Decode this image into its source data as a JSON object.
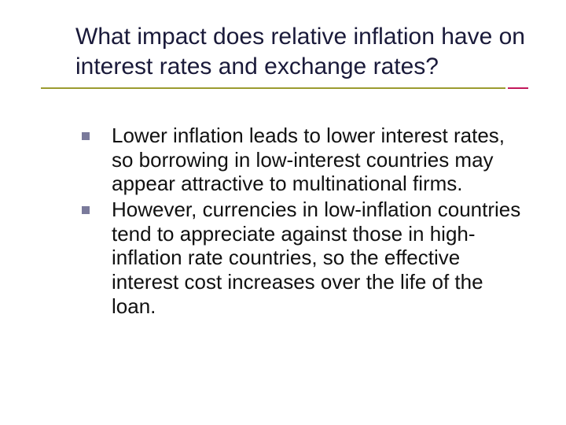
{
  "slide": {
    "title": "What impact does relative inflation have on interest rates and exchange rates?",
    "bullets": [
      "Lower inflation leads to lower interest rates, so borrowing in low-interest countries may appear attractive to multinational firms.",
      "However, currencies in low-inflation countries tend to appreciate against those in high-inflation rate countries, so the effective interest cost increases over the life of the loan."
    ]
  },
  "styling": {
    "title_color": "#1a1a3a",
    "title_fontsize": 30,
    "body_color": "#111111",
    "body_fontsize": 26,
    "bullet_marker_color": "#7a7a9b",
    "bullet_marker_size": 10,
    "underline_main_color": "#9b9b30",
    "underline_accent_color": "#c2185b",
    "background_color": "#ffffff"
  }
}
